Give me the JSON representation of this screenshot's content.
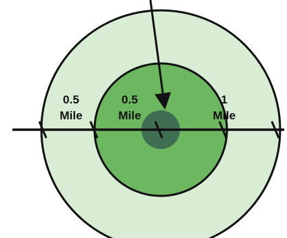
{
  "labels": {
    "left_outer": {
      "top": "0.5",
      "bottom": "Mile"
    },
    "left_inner": {
      "top": "0.5",
      "bottom": "Mile"
    },
    "right": {
      "top": "1",
      "bottom": "Mile"
    }
  },
  "colors": {
    "outer_ring": "#d8edd3",
    "middle_ring": "#6cb75f",
    "center": "#3f6e52",
    "stroke": "#111111",
    "background": "#ffffff"
  }
}
